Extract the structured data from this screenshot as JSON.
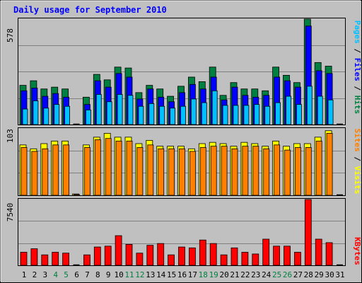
{
  "title": "Daily usage for September 2010",
  "chart_data": [
    {
      "type": "bar",
      "panel": "top",
      "categories": [
        "1",
        "2",
        "3",
        "4",
        "5",
        "6",
        "7",
        "8",
        "9",
        "10",
        "11",
        "12",
        "13",
        "14",
        "15",
        "16",
        "17",
        "18",
        "19",
        "20",
        "21",
        "22",
        "23",
        "24",
        "25",
        "26",
        "27",
        "28",
        "29",
        "30",
        "31"
      ],
      "y_max_label": "578",
      "ylim": [
        0,
        578
      ],
      "series": [
        {
          "name": "Hits",
          "color": "#008040",
          "values": [
            215,
            240,
            195,
            205,
            195,
            0,
            150,
            275,
            245,
            315,
            310,
            175,
            215,
            195,
            155,
            210,
            260,
            235,
            315,
            160,
            230,
            195,
            195,
            185,
            315,
            270,
            230,
            578,
            340,
            320,
            0
          ]
        },
        {
          "name": "Files",
          "color": "#0000FF",
          "values": [
            185,
            200,
            155,
            170,
            150,
            0,
            110,
            240,
            205,
            280,
            260,
            140,
            195,
            150,
            125,
            175,
            220,
            195,
            260,
            135,
            205,
            160,
            150,
            160,
            260,
            240,
            205,
            540,
            295,
            280,
            0
          ]
        },
        {
          "name": "Pages",
          "color": "#00C0FF",
          "values": [
            85,
            130,
            90,
            110,
            100,
            0,
            80,
            165,
            125,
            165,
            160,
            100,
            115,
            100,
            90,
            100,
            140,
            120,
            185,
            105,
            105,
            105,
            110,
            100,
            120,
            155,
            110,
            210,
            155,
            135,
            0
          ]
        }
      ],
      "y_labels": [
        "Pages",
        "Files",
        "Hits"
      ]
    },
    {
      "type": "bar",
      "panel": "middle",
      "categories": [
        "1",
        "2",
        "3",
        "4",
        "5",
        "6",
        "7",
        "8",
        "9",
        "10",
        "11",
        "12",
        "13",
        "14",
        "15",
        "16",
        "17",
        "18",
        "19",
        "20",
        "21",
        "22",
        "23",
        "24",
        "25",
        "26",
        "27",
        "28",
        "29",
        "30",
        "31"
      ],
      "y_max_label": "103",
      "ylim": [
        0,
        103
      ],
      "series": [
        {
          "name": "Visits",
          "color": "#FFFF00",
          "values": [
            78,
            72,
            80,
            84,
            84,
            2,
            78,
            90,
            96,
            90,
            90,
            80,
            85,
            76,
            76,
            76,
            72,
            80,
            82,
            80,
            76,
            82,
            80,
            76,
            84,
            76,
            80,
            80,
            90,
            100,
            0
          ]
        },
        {
          "name": "Sites",
          "color": "#FF8000",
          "values": [
            74,
            68,
            72,
            78,
            78,
            1,
            74,
            86,
            88,
            84,
            84,
            74,
            78,
            72,
            72,
            72,
            68,
            74,
            76,
            76,
            72,
            76,
            76,
            72,
            78,
            70,
            74,
            74,
            84,
            96,
            0
          ]
        }
      ],
      "y_labels": [
        "Sites",
        "Visits"
      ]
    },
    {
      "type": "bar",
      "panel": "bottom",
      "categories": [
        "1",
        "2",
        "3",
        "4",
        "5",
        "6",
        "7",
        "8",
        "9",
        "10",
        "11",
        "12",
        "13",
        "14",
        "15",
        "16",
        "17",
        "18",
        "19",
        "20",
        "21",
        "22",
        "23",
        "24",
        "25",
        "26",
        "27",
        "28",
        "29",
        "30",
        "31"
      ],
      "y_max_label": "7540",
      "ylim": [
        0,
        7540
      ],
      "series": [
        {
          "name": "KBytes",
          "color": "#FF0000",
          "values": [
            1500,
            1900,
            1200,
            1500,
            1400,
            0,
            1200,
            2100,
            2200,
            3400,
            2400,
            1400,
            2300,
            2500,
            1200,
            2100,
            2000,
            2900,
            2500,
            1200,
            2000,
            1500,
            1300,
            3000,
            2200,
            2200,
            1500,
            7540,
            3000,
            2600,
            0
          ]
        }
      ],
      "y_labels": [
        "KBytes"
      ]
    }
  ],
  "weekend_days": [
    "4",
    "5",
    "11",
    "12",
    "18",
    "19",
    "25",
    "26"
  ]
}
